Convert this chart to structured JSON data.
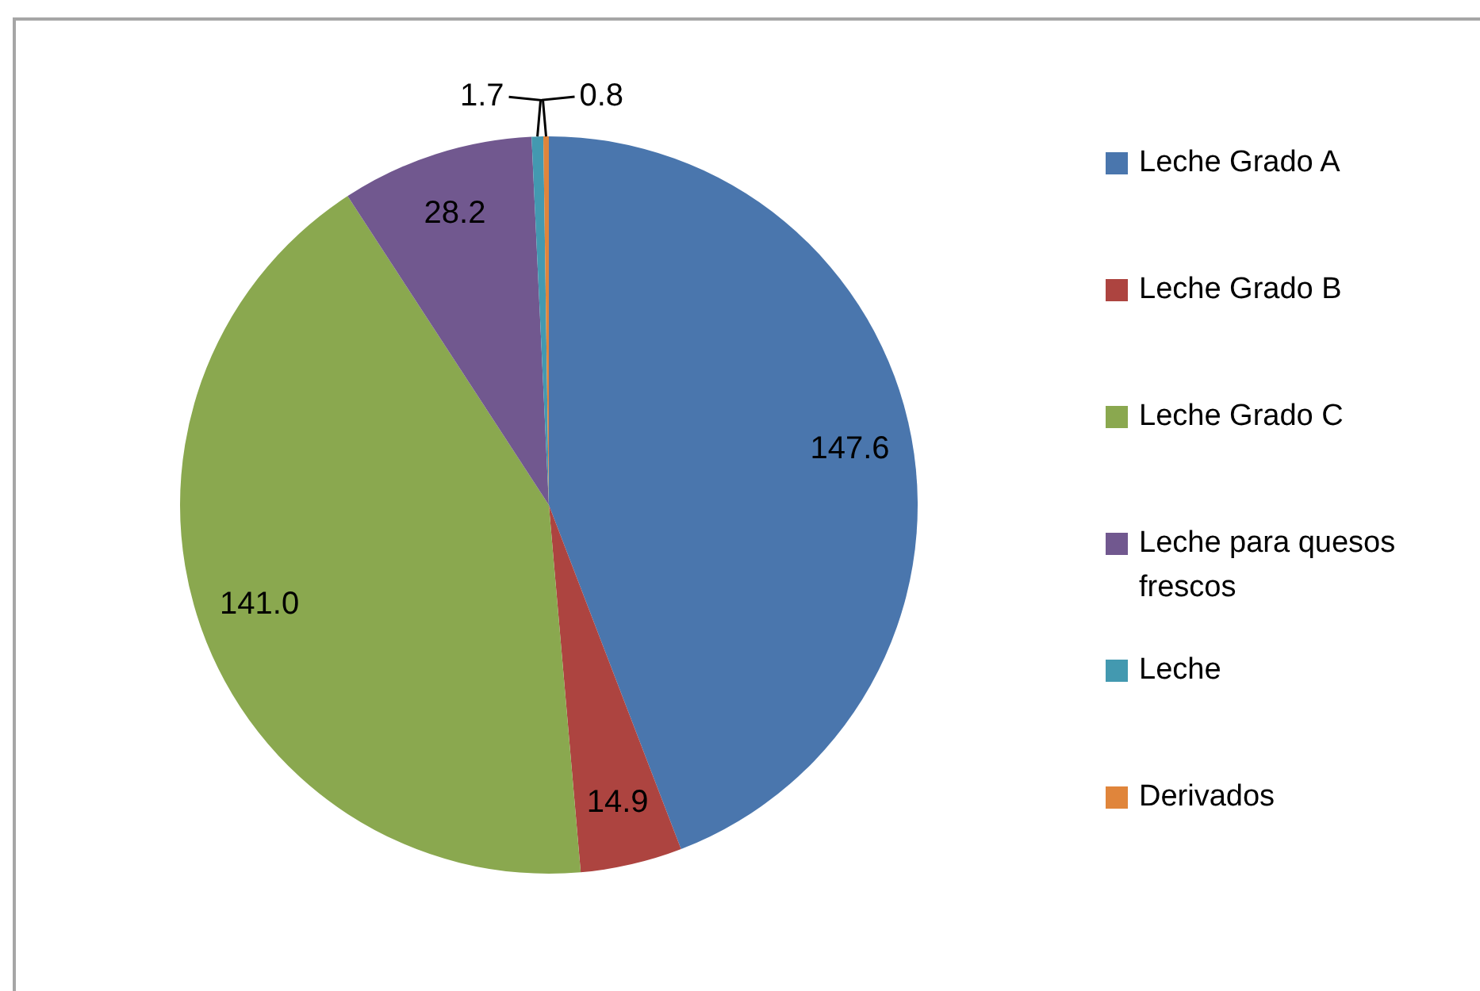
{
  "chart_data": {
    "type": "pie",
    "categories": [
      "Leche Grado A",
      "Leche Grado B",
      "Leche Grado C",
      "Leche para quesos frescos",
      "Leche",
      "Derivados"
    ],
    "values": [
      147.6,
      14.9,
      141.0,
      28.2,
      1.7,
      0.8
    ],
    "colors": [
      "#4a76ad",
      "#ad4440",
      "#8aa84f",
      "#71588f",
      "#4399b0",
      "#e0853b"
    ],
    "value_labels": [
      "147.6",
      "14.9",
      "141.0",
      "28.2",
      "1.7",
      "0.8"
    ],
    "legend": "right"
  }
}
